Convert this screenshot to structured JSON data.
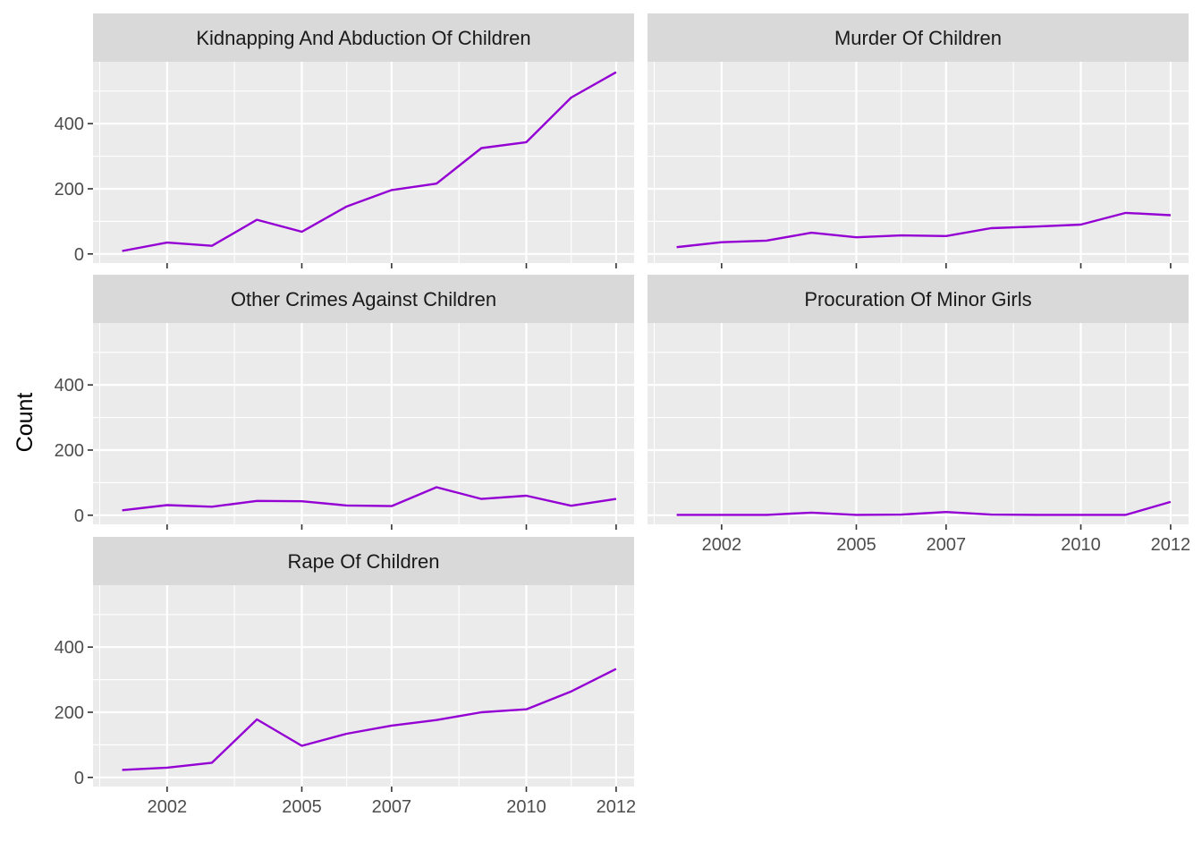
{
  "chart_data": {
    "type": "line",
    "ylabel": "Count",
    "xlabel": "",
    "x": [
      2001,
      2002,
      2003,
      2004,
      2005,
      2006,
      2007,
      2008,
      2009,
      2010,
      2011,
      2012
    ],
    "x_ticks": [
      2002,
      2005,
      2007,
      2010,
      2012
    ],
    "y_ticks": [
      0,
      200,
      400
    ],
    "xlim": [
      2000.35,
      2012.4
    ],
    "ylim": [
      -28,
      590
    ],
    "line_color": "#9400D3",
    "panel_background": "#EBEBEB",
    "strip_background": "#D9D9D9",
    "grid": true,
    "panels": [
      {
        "name": "Kidnapping And Abduction Of Children",
        "values": [
          9,
          35,
          25,
          105,
          68,
          146,
          196,
          216,
          325,
          343,
          480,
          558
        ]
      },
      {
        "name": "Murder Of Children",
        "values": [
          21,
          36,
          41,
          65,
          51,
          57,
          55,
          79,
          84,
          90,
          126,
          119
        ]
      },
      {
        "name": "Other Crimes Against Children",
        "values": [
          15,
          31,
          26,
          44,
          43,
          30,
          28,
          86,
          50,
          60,
          29,
          50
        ]
      },
      {
        "name": "Procuration Of Minor Girls",
        "values": [
          1,
          1,
          1,
          8,
          1,
          2,
          10,
          2,
          1,
          1,
          1,
          41
        ]
      },
      {
        "name": "Rape Of Children",
        "values": [
          23,
          30,
          45,
          178,
          97,
          134,
          159,
          176,
          200,
          209,
          264,
          333
        ]
      }
    ]
  }
}
